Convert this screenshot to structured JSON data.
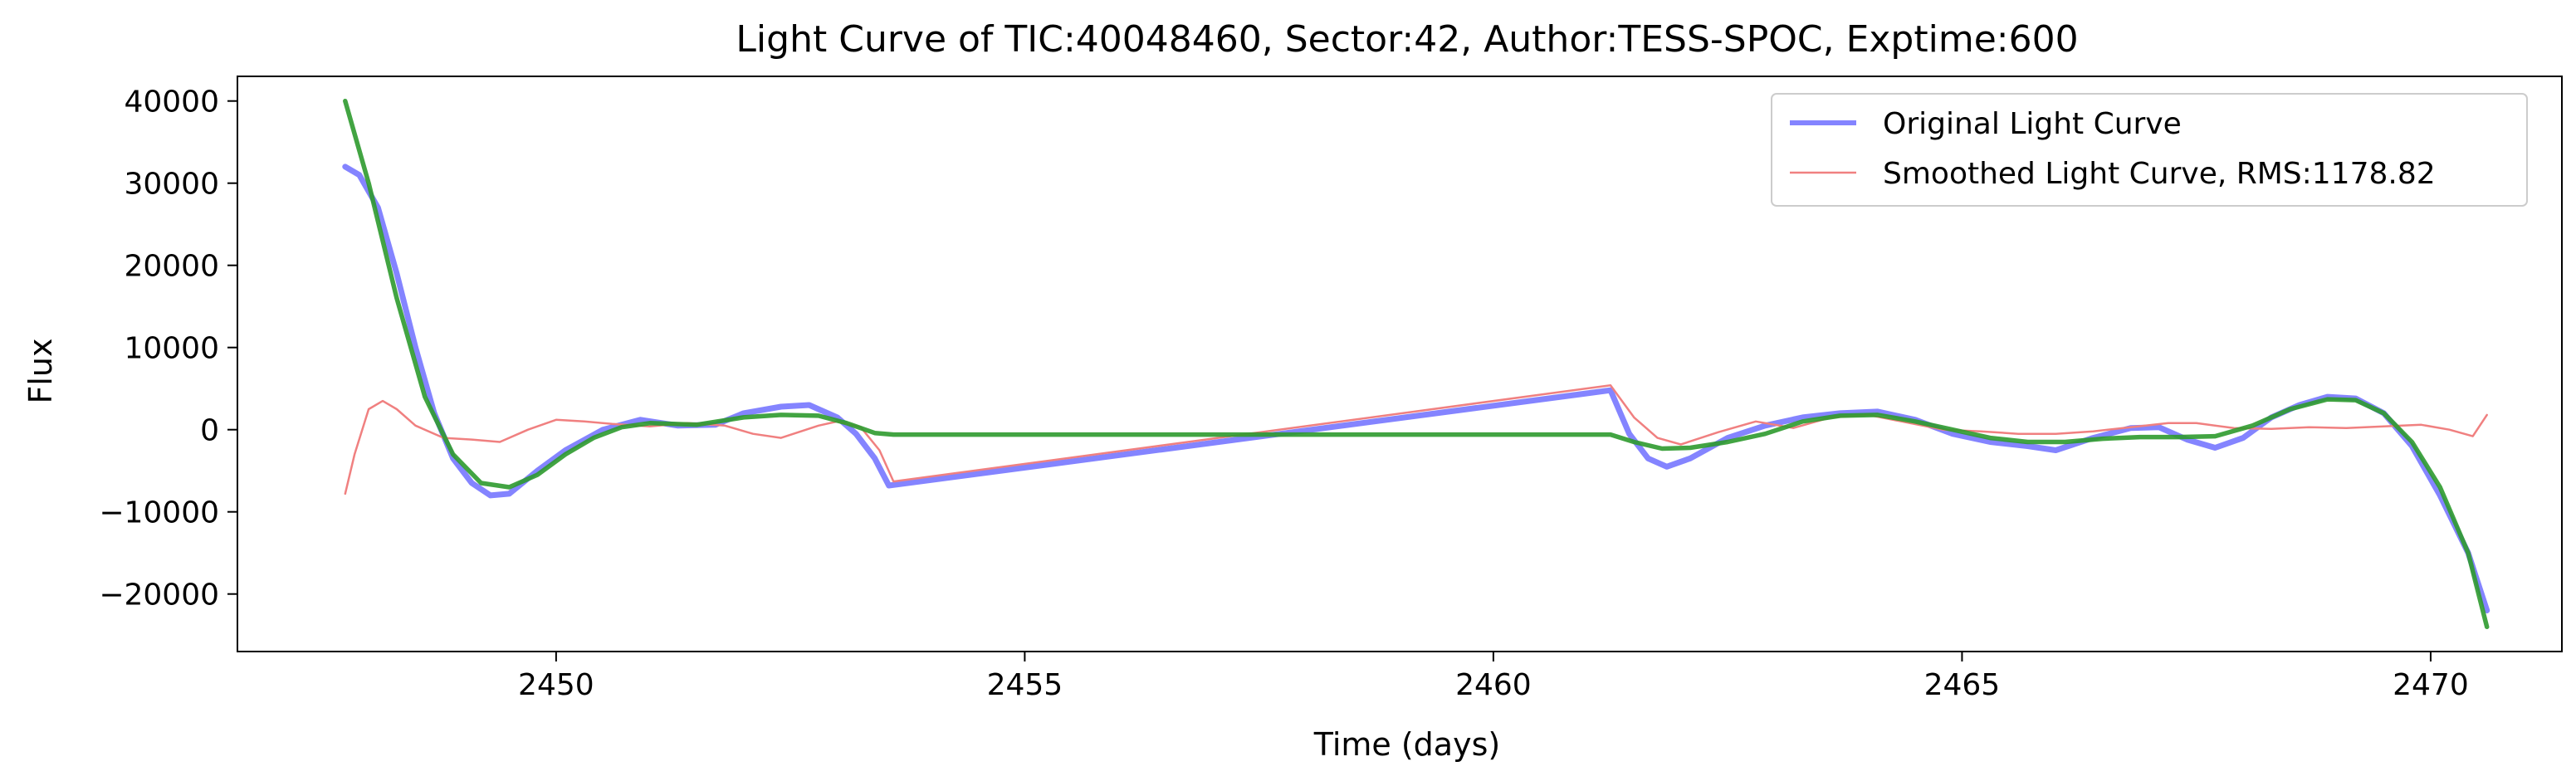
{
  "chart_data": {
    "type": "line",
    "title": "Light Curve of TIC:40048460, Sector:42, Author:TESS-SPOC, Exptime:600",
    "xlabel": "Time (days)",
    "ylabel": "Flux",
    "xlim": [
      2446.6,
      2471.4
    ],
    "ylim": [
      -27000,
      43000
    ],
    "xticks": [
      2450,
      2455,
      2460,
      2465,
      2470
    ],
    "yticks": [
      -20000,
      -10000,
      0,
      10000,
      20000,
      30000,
      40000
    ],
    "xtick_labels": [
      "2450",
      "2455",
      "2460",
      "2465",
      "2470"
    ],
    "ytick_labels": [
      "−20000",
      "−10000",
      "0",
      "10000",
      "20000",
      "30000",
      "40000"
    ],
    "grid": false,
    "legend_position": "top-right",
    "legend": [
      {
        "label": "Original Light Curve",
        "color": "#7777ff"
      },
      {
        "label": "Smoothed Light Curve, RMS:1178.82",
        "color": "#f08080"
      }
    ],
    "series": [
      {
        "name": "Original Light Curve",
        "color": "#7777ff",
        "x": [
          2447.75,
          2447.9,
          2448.1,
          2448.3,
          2448.5,
          2448.7,
          2448.9,
          2449.1,
          2449.3,
          2449.5,
          2449.8,
          2450.1,
          2450.5,
          2450.9,
          2451.3,
          2451.7,
          2452.0,
          2452.4,
          2452.7,
          2453.0,
          2453.2,
          2453.4,
          2453.55,
          2461.25,
          2461.45,
          2461.65,
          2461.85,
          2462.1,
          2462.5,
          2462.9,
          2463.3,
          2463.7,
          2464.1,
          2464.5,
          2464.9,
          2465.3,
          2465.7,
          2466.0,
          2466.4,
          2466.8,
          2467.1,
          2467.4,
          2467.7,
          2468.0,
          2468.3,
          2468.6,
          2468.9,
          2469.2,
          2469.5,
          2469.8,
          2470.1,
          2470.4,
          2470.6
        ],
        "y": [
          32000,
          31000,
          27000,
          19000,
          10000,
          2000,
          -3500,
          -6500,
          -8000,
          -7800,
          -5000,
          -2500,
          0,
          1200,
          500,
          600,
          2000,
          2800,
          3000,
          1500,
          -500,
          -3500,
          -6800,
          4800,
          -500,
          -3500,
          -4500,
          -3500,
          -1000,
          500,
          1500,
          2000,
          2200,
          1200,
          -500,
          -1500,
          -2000,
          -2500,
          -1000,
          200,
          300,
          -1200,
          -2200,
          -1000,
          1500,
          3000,
          4000,
          3800,
          2000,
          -2000,
          -8000,
          -15000,
          -22000
        ]
      },
      {
        "name": "Smoothed Light Curve, RMS:1178.82",
        "color": "#f08080",
        "x": [
          2447.75,
          2447.85,
          2448.0,
          2448.15,
          2448.3,
          2448.5,
          2448.8,
          2449.1,
          2449.4,
          2449.7,
          2450.0,
          2450.3,
          2450.6,
          2451.0,
          2451.4,
          2451.8,
          2452.1,
          2452.4,
          2452.8,
          2453.0,
          2453.25,
          2453.45,
          2453.6,
          2461.25,
          2461.5,
          2461.75,
          2462.0,
          2462.4,
          2462.8,
          2463.2,
          2463.6,
          2464.0,
          2464.4,
          2464.8,
          2465.2,
          2465.6,
          2466.0,
          2466.4,
          2466.8,
          2467.2,
          2467.5,
          2467.9,
          2468.3,
          2468.7,
          2469.1,
          2469.5,
          2469.9,
          2470.2,
          2470.45,
          2470.6
        ],
        "y": [
          -7800,
          -3000,
          2500,
          3500,
          2500,
          500,
          -1000,
          -1200,
          -1500,
          0,
          1200,
          1000,
          700,
          400,
          800,
          500,
          -500,
          -1000,
          500,
          1000,
          300,
          -2500,
          -6300,
          5400,
          1500,
          -1000,
          -1800,
          -300,
          1000,
          200,
          1500,
          1800,
          900,
          0,
          -200,
          -500,
          -500,
          -200,
          300,
          800,
          800,
          200,
          100,
          300,
          200,
          400,
          600,
          0,
          -800,
          1800
        ]
      },
      {
        "name": "",
        "color": "#2e9a2e",
        "x": [
          2447.75,
          2448.0,
          2448.3,
          2448.6,
          2448.9,
          2449.2,
          2449.5,
          2449.8,
          2450.1,
          2450.4,
          2450.7,
          2451.0,
          2451.5,
          2452.0,
          2452.4,
          2452.8,
          2453.1,
          2453.4,
          2453.6,
          2461.25,
          2461.5,
          2461.8,
          2462.1,
          2462.5,
          2462.9,
          2463.3,
          2463.7,
          2464.1,
          2464.5,
          2464.9,
          2465.3,
          2465.7,
          2466.1,
          2466.5,
          2466.9,
          2467.3,
          2467.7,
          2468.1,
          2468.5,
          2468.9,
          2469.2,
          2469.5,
          2469.8,
          2470.1,
          2470.4,
          2470.6
        ],
        "y": [
          40000,
          30000,
          16000,
          4000,
          -3000,
          -6500,
          -7000,
          -5500,
          -3000,
          -1000,
          300,
          800,
          600,
          1500,
          1800,
          1700,
          800,
          -400,
          -600,
          -600,
          -1500,
          -2300,
          -2200,
          -1500,
          -500,
          1000,
          1700,
          1800,
          1000,
          0,
          -1000,
          -1500,
          -1500,
          -1100,
          -900,
          -900,
          -800,
          500,
          2500,
          3700,
          3600,
          2000,
          -1500,
          -7000,
          -15000,
          -24000
        ]
      }
    ]
  }
}
